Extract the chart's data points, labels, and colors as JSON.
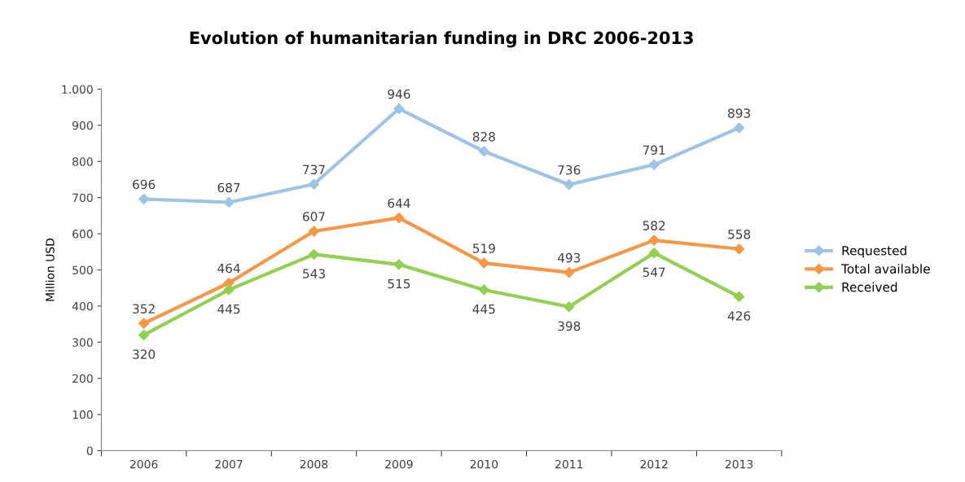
{
  "chart_data": {
    "type": "line",
    "title": "Evolution of humanitarian funding in DRC 2006-2013",
    "ylabel": "Million USD",
    "categories": [
      "2006",
      "2007",
      "2008",
      "2009",
      "2010",
      "2011",
      "2012",
      "2013"
    ],
    "series": [
      {
        "name": "Requested",
        "color": "#9dc3e6",
        "values": [
          696,
          687,
          737,
          946,
          828,
          736,
          791,
          893
        ]
      },
      {
        "name": "Total available",
        "color": "#f79646",
        "values": [
          352,
          464,
          607,
          644,
          519,
          493,
          582,
          558
        ]
      },
      {
        "name": "Received",
        "color": "#92d050",
        "values": [
          320,
          445,
          543,
          515,
          445,
          398,
          547,
          426
        ]
      }
    ],
    "ylim": [
      0,
      1000
    ],
    "yticks": [
      0,
      100,
      200,
      300,
      400,
      500,
      600,
      700,
      800,
      900,
      {
        "value": 1000,
        "label": "1.000"
      }
    ],
    "marker": "diamond",
    "line_style": "solid",
    "data_labels": true,
    "legend": "right",
    "grid": false
  }
}
